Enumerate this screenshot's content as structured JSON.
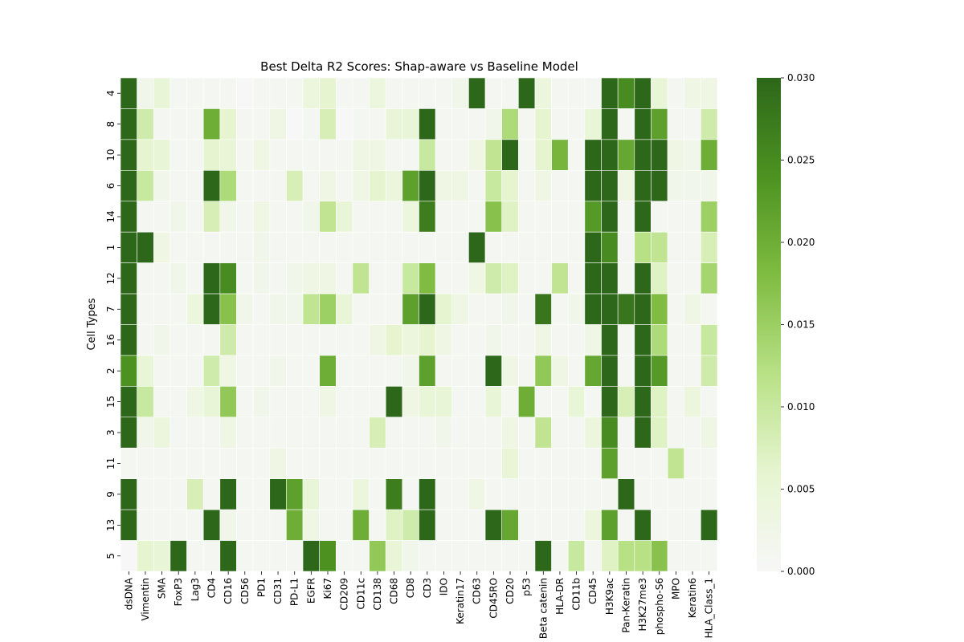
{
  "chart_data": {
    "type": "heatmap",
    "title": "Best Delta R2 Scores: Shap-aware vs Baseline Model",
    "xlabel": "",
    "ylabel": "Cell Types",
    "x_categories": [
      "dsDNA",
      "Vimentin",
      "SMA",
      "FoxP3",
      "Lag3",
      "CD4",
      "CD16",
      "CD56",
      "PD1",
      "CD31",
      "PD-L1",
      "EGFR",
      "Ki67",
      "CD209",
      "CD11c",
      "CD138",
      "CD68",
      "CD8",
      "CD3",
      "IDO",
      "Keratin17",
      "CD63",
      "CD45RO",
      "CD20",
      "p53",
      "Beta catenin",
      "HLA-DR",
      "CD11b",
      "CD45",
      "H3K9ac",
      "Pan-Keratin",
      "H3K27me3",
      "phospho-S6",
      "MPO",
      "Keratin6",
      "HLA_Class_1"
    ],
    "y_categories": [
      "4",
      "8",
      "10",
      "6",
      "14",
      "1",
      "12",
      "7",
      "16",
      "2",
      "15",
      "3",
      "11",
      "9",
      "13",
      "5"
    ],
    "values": [
      [
        0.03,
        0.002,
        0.005,
        0.001,
        0.001,
        0.001,
        0.001,
        0.0,
        0.001,
        0.001,
        0.001,
        0.004,
        0.006,
        0.001,
        0.001,
        0.004,
        0.001,
        0.001,
        0.001,
        0.001,
        0.002,
        0.03,
        0.001,
        0.001,
        0.03,
        0.004,
        0.001,
        0.001,
        0.001,
        0.03,
        0.025,
        0.03,
        0.005,
        0.001,
        0.003,
        0.003
      ],
      [
        0.03,
        0.009,
        0.001,
        0.001,
        0.001,
        0.02,
        0.006,
        0.001,
        0.001,
        0.003,
        0.0,
        0.001,
        0.008,
        0.0,
        0.001,
        0.001,
        0.005,
        0.005,
        0.03,
        0.001,
        0.001,
        0.001,
        0.002,
        0.013,
        0.001,
        0.006,
        0.001,
        0.001,
        0.005,
        0.03,
        0.001,
        0.03,
        0.022,
        0.001,
        0.001,
        0.009
      ],
      [
        0.03,
        0.006,
        0.005,
        0.001,
        0.001,
        0.006,
        0.005,
        0.001,
        0.003,
        0.001,
        0.001,
        0.001,
        0.001,
        0.001,
        0.003,
        0.003,
        0.001,
        0.001,
        0.01,
        0.001,
        0.001,
        0.003,
        0.011,
        0.03,
        0.001,
        0.006,
        0.019,
        0.001,
        0.03,
        0.03,
        0.021,
        0.03,
        0.03,
        0.003,
        0.002,
        0.02
      ],
      [
        0.03,
        0.01,
        0.002,
        0.001,
        0.001,
        0.03,
        0.013,
        0.001,
        0.001,
        0.001,
        0.008,
        0.001,
        0.003,
        0.001,
        0.003,
        0.006,
        0.004,
        0.022,
        0.03,
        0.003,
        0.003,
        0.001,
        0.01,
        0.006,
        0.001,
        0.003,
        0.001,
        0.001,
        0.03,
        0.03,
        0.003,
        0.03,
        0.03,
        0.002,
        0.002,
        0.002
      ],
      [
        0.03,
        0.001,
        0.001,
        0.002,
        0.001,
        0.008,
        0.002,
        0.001,
        0.003,
        0.001,
        0.001,
        0.002,
        0.011,
        0.005,
        0.001,
        0.001,
        0.001,
        0.004,
        0.027,
        0.001,
        0.001,
        0.001,
        0.017,
        0.007,
        0.001,
        0.001,
        0.001,
        0.001,
        0.023,
        0.03,
        0.001,
        0.03,
        0.001,
        0.001,
        0.001,
        0.015
      ],
      [
        0.03,
        0.03,
        0.003,
        0.001,
        0.001,
        0.001,
        0.001,
        0.001,
        0.002,
        0.001,
        0.001,
        0.001,
        0.001,
        0.001,
        0.001,
        0.001,
        0.001,
        0.001,
        0.001,
        0.001,
        0.001,
        0.03,
        0.001,
        0.001,
        0.001,
        0.001,
        0.001,
        0.001,
        0.03,
        0.025,
        0.001,
        0.012,
        0.011,
        0.001,
        0.001,
        0.008
      ],
      [
        0.03,
        0.001,
        0.001,
        0.002,
        0.001,
        0.03,
        0.025,
        0.001,
        0.002,
        0.001,
        0.002,
        0.003,
        0.003,
        0.001,
        0.011,
        0.001,
        0.001,
        0.01,
        0.018,
        0.001,
        0.001,
        0.003,
        0.009,
        0.007,
        0.001,
        0.001,
        0.011,
        0.001,
        0.03,
        0.03,
        0.001,
        0.03,
        0.007,
        0.001,
        0.001,
        0.014
      ],
      [
        0.03,
        0.001,
        0.001,
        0.001,
        0.004,
        0.03,
        0.017,
        0.002,
        0.001,
        0.002,
        0.002,
        0.011,
        0.015,
        0.005,
        0.001,
        0.001,
        0.001,
        0.022,
        0.03,
        0.006,
        0.003,
        0.001,
        0.001,
        0.002,
        0.001,
        0.028,
        0.001,
        0.002,
        0.03,
        0.03,
        0.028,
        0.03,
        0.018,
        0.001,
        0.003,
        0.001
      ],
      [
        0.03,
        0.001,
        0.002,
        0.001,
        0.001,
        0.001,
        0.009,
        0.001,
        0.001,
        0.001,
        0.001,
        0.001,
        0.001,
        0.001,
        0.001,
        0.003,
        0.006,
        0.004,
        0.006,
        0.003,
        0.001,
        0.001,
        0.002,
        0.001,
        0.001,
        0.003,
        0.001,
        0.001,
        0.003,
        0.03,
        0.001,
        0.03,
        0.013,
        0.001,
        0.001,
        0.01
      ],
      [
        0.024,
        0.005,
        0.001,
        0.001,
        0.001,
        0.009,
        0.003,
        0.001,
        0.001,
        0.002,
        0.001,
        0.001,
        0.02,
        0.001,
        0.001,
        0.001,
        0.001,
        0.002,
        0.022,
        0.001,
        0.001,
        0.001,
        0.03,
        0.003,
        0.001,
        0.016,
        0.003,
        0.001,
        0.021,
        0.03,
        0.001,
        0.03,
        0.023,
        0.001,
        0.001,
        0.009
      ],
      [
        0.03,
        0.01,
        0.001,
        0.001,
        0.003,
        0.005,
        0.016,
        0.001,
        0.002,
        0.001,
        0.001,
        0.001,
        0.003,
        0.001,
        0.001,
        0.001,
        0.03,
        0.003,
        0.005,
        0.005,
        0.001,
        0.001,
        0.005,
        0.001,
        0.02,
        0.001,
        0.001,
        0.005,
        0.001,
        0.03,
        0.008,
        0.03,
        0.007,
        0.001,
        0.004,
        0.001
      ],
      [
        0.03,
        0.002,
        0.004,
        0.001,
        0.001,
        0.001,
        0.003,
        0.001,
        0.001,
        0.001,
        0.001,
        0.001,
        0.001,
        0.001,
        0.001,
        0.008,
        0.001,
        0.001,
        0.001,
        0.002,
        0.001,
        0.001,
        0.001,
        0.003,
        0.001,
        0.011,
        0.001,
        0.001,
        0.004,
        0.025,
        0.001,
        0.03,
        0.007,
        0.001,
        0.001,
        0.003
      ],
      [
        0.001,
        0.001,
        0.001,
        0.001,
        0.001,
        0.001,
        0.001,
        0.001,
        0.001,
        0.003,
        0.001,
        0.001,
        0.001,
        0.001,
        0.001,
        0.001,
        0.001,
        0.001,
        0.001,
        0.001,
        0.001,
        0.001,
        0.001,
        0.005,
        0.001,
        0.001,
        0.001,
        0.001,
        0.001,
        0.022,
        0.001,
        0.001,
        0.001,
        0.011,
        0.001,
        0.001
      ],
      [
        0.03,
        0.001,
        0.001,
        0.001,
        0.008,
        0.001,
        0.03,
        0.001,
        0.001,
        0.03,
        0.022,
        0.005,
        0.001,
        0.001,
        0.004,
        0.001,
        0.027,
        0.001,
        0.03,
        0.001,
        0.001,
        0.003,
        0.001,
        0.001,
        0.001,
        0.001,
        0.001,
        0.001,
        0.001,
        0.001,
        0.03,
        0.001,
        0.001,
        0.001,
        0.001,
        0.001
      ],
      [
        0.03,
        0.001,
        0.001,
        0.001,
        0.001,
        0.03,
        0.002,
        0.001,
        0.001,
        0.001,
        0.02,
        0.003,
        0.001,
        0.001,
        0.02,
        0.001,
        0.007,
        0.009,
        0.03,
        0.001,
        0.001,
        0.001,
        0.03,
        0.021,
        0.001,
        0.001,
        0.001,
        0.001,
        0.004,
        0.022,
        0.001,
        0.03,
        0.001,
        0.001,
        0.001,
        0.03
      ],
      [
        0.0,
        0.006,
        0.005,
        0.03,
        0.001,
        0.001,
        0.03,
        0.001,
        0.001,
        0.001,
        0.001,
        0.03,
        0.024,
        0.001,
        0.001,
        0.016,
        0.005,
        0.002,
        0.001,
        0.001,
        0.001,
        0.001,
        0.001,
        0.001,
        0.001,
        0.03,
        0.001,
        0.01,
        0.001,
        0.007,
        0.012,
        0.012,
        0.017,
        0.001,
        0.001,
        0.001
      ]
    ],
    "colorbar": {
      "min": 0.0,
      "max": 0.03,
      "ticks": [
        "0.000",
        "0.005",
        "0.010",
        "0.015",
        "0.020",
        "0.025",
        "0.030"
      ],
      "colors": [
        "#f7f7f7",
        "#e6f5d0",
        "#b8e186",
        "#7fbc41",
        "#4d9221",
        "#2d671a"
      ]
    },
    "grid": false,
    "legend": "right colorbar"
  }
}
